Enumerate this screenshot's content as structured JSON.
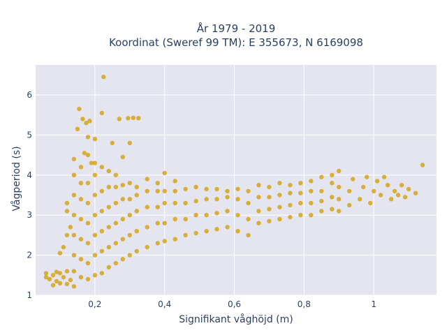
{
  "chart_data": {
    "type": "scatter",
    "title": [
      "År 1979 - 2019",
      "Koordinat (Sweref 99 TM): E 355673, N 6169098"
    ],
    "xlabel": "Signifikant våghöjd (m)",
    "ylabel": "Vågperiod (s)",
    "xlim": [
      0.03,
      1.18
    ],
    "ylim": [
      1.0,
      6.75
    ],
    "x_ticks": [
      0.2,
      0.4,
      0.6,
      0.8,
      1.0
    ],
    "x_tick_labels": [
      "0,2",
      "0,4",
      "0,6",
      "0,8",
      "1"
    ],
    "y_ticks": [
      1,
      2,
      3,
      4,
      5,
      6
    ],
    "y_tick_labels": [
      "1",
      "2",
      "3",
      "4",
      "5",
      "6"
    ],
    "grid": true,
    "plot_background": "#e5e5f0",
    "marker_color": "#d4a419",
    "series": [
      {
        "points": [
          [
            0.06,
            1.45
          ],
          [
            0.07,
            1.4
          ],
          [
            0.08,
            1.5
          ],
          [
            0.09,
            1.35
          ],
          [
            0.1,
            1.55
          ],
          [
            0.11,
            1.45
          ],
          [
            0.12,
            1.6
          ],
          [
            0.13,
            1.38
          ],
          [
            0.08,
            1.25
          ],
          [
            0.1,
            1.3
          ],
          [
            0.12,
            1.28
          ],
          [
            0.14,
            1.22
          ],
          [
            0.06,
            1.55
          ],
          [
            0.09,
            1.58
          ],
          [
            0.1,
            2.05
          ],
          [
            0.11,
            2.2
          ],
          [
            0.12,
            2.5
          ],
          [
            0.12,
            3.1
          ],
          [
            0.12,
            3.3
          ],
          [
            0.13,
            2.7
          ],
          [
            0.14,
            1.6
          ],
          [
            0.14,
            2.0
          ],
          [
            0.14,
            2.5
          ],
          [
            0.14,
            3.0
          ],
          [
            0.14,
            3.5
          ],
          [
            0.14,
            4.0
          ],
          [
            0.14,
            4.4
          ],
          [
            0.16,
            1.45
          ],
          [
            0.16,
            1.9
          ],
          [
            0.16,
            2.4
          ],
          [
            0.16,
            2.9
          ],
          [
            0.16,
            3.4
          ],
          [
            0.16,
            3.8
          ],
          [
            0.16,
            4.2
          ],
          [
            0.18,
            1.4
          ],
          [
            0.18,
            1.8
          ],
          [
            0.18,
            2.3
          ],
          [
            0.18,
            2.8
          ],
          [
            0.18,
            3.3
          ],
          [
            0.18,
            3.8
          ],
          [
            0.18,
            4.5
          ],
          [
            0.2,
            1.5
          ],
          [
            0.2,
            2.0
          ],
          [
            0.2,
            2.5
          ],
          [
            0.2,
            3.0
          ],
          [
            0.2,
            3.5
          ],
          [
            0.2,
            4.0
          ],
          [
            0.2,
            4.3
          ],
          [
            0.22,
            1.55
          ],
          [
            0.22,
            2.1
          ],
          [
            0.22,
            2.6
          ],
          [
            0.22,
            3.1
          ],
          [
            0.22,
            3.6
          ],
          [
            0.22,
            4.2
          ],
          [
            0.24,
            1.7
          ],
          [
            0.24,
            2.2
          ],
          [
            0.24,
            2.7
          ],
          [
            0.24,
            3.2
          ],
          [
            0.24,
            3.7
          ],
          [
            0.24,
            4.1
          ],
          [
            0.26,
            1.8
          ],
          [
            0.26,
            2.3
          ],
          [
            0.26,
            2.8
          ],
          [
            0.26,
            3.3
          ],
          [
            0.26,
            3.7
          ],
          [
            0.26,
            4.0
          ],
          [
            0.28,
            1.9
          ],
          [
            0.28,
            2.4
          ],
          [
            0.28,
            2.9
          ],
          [
            0.28,
            3.4
          ],
          [
            0.28,
            3.75
          ],
          [
            0.3,
            2.0
          ],
          [
            0.3,
            2.5
          ],
          [
            0.3,
            3.0
          ],
          [
            0.3,
            3.4
          ],
          [
            0.3,
            3.8
          ],
          [
            0.32,
            2.1
          ],
          [
            0.32,
            2.6
          ],
          [
            0.32,
            3.1
          ],
          [
            0.32,
            3.5
          ],
          [
            0.32,
            3.7
          ],
          [
            0.35,
            2.2
          ],
          [
            0.35,
            2.7
          ],
          [
            0.35,
            3.2
          ],
          [
            0.35,
            3.6
          ],
          [
            0.35,
            3.9
          ],
          [
            0.38,
            2.3
          ],
          [
            0.38,
            2.8
          ],
          [
            0.38,
            3.2
          ],
          [
            0.38,
            3.6
          ],
          [
            0.38,
            3.8
          ],
          [
            0.4,
            2.35
          ],
          [
            0.4,
            2.8
          ],
          [
            0.4,
            3.3
          ],
          [
            0.4,
            3.6
          ],
          [
            0.4,
            4.05
          ],
          [
            0.43,
            2.4
          ],
          [
            0.43,
            2.9
          ],
          [
            0.43,
            3.3
          ],
          [
            0.43,
            3.6
          ],
          [
            0.43,
            3.85
          ],
          [
            0.46,
            2.5
          ],
          [
            0.46,
            2.9
          ],
          [
            0.46,
            3.3
          ],
          [
            0.46,
            3.65
          ],
          [
            0.49,
            2.55
          ],
          [
            0.49,
            3.0
          ],
          [
            0.49,
            3.35
          ],
          [
            0.49,
            3.7
          ],
          [
            0.52,
            2.6
          ],
          [
            0.52,
            3.0
          ],
          [
            0.52,
            3.4
          ],
          [
            0.52,
            3.65
          ],
          [
            0.55,
            2.65
          ],
          [
            0.55,
            3.05
          ],
          [
            0.55,
            3.4
          ],
          [
            0.55,
            3.65
          ],
          [
            0.58,
            2.7
          ],
          [
            0.58,
            3.1
          ],
          [
            0.58,
            3.45
          ],
          [
            0.58,
            3.6
          ],
          [
            0.61,
            2.6
          ],
          [
            0.61,
            3.0
          ],
          [
            0.61,
            3.4
          ],
          [
            0.61,
            3.65
          ],
          [
            0.64,
            2.5
          ],
          [
            0.64,
            2.9
          ],
          [
            0.64,
            3.3
          ],
          [
            0.64,
            3.6
          ],
          [
            0.67,
            2.8
          ],
          [
            0.67,
            3.1
          ],
          [
            0.67,
            3.45
          ],
          [
            0.67,
            3.75
          ],
          [
            0.7,
            2.85
          ],
          [
            0.7,
            3.15
          ],
          [
            0.7,
            3.45
          ],
          [
            0.7,
            3.7
          ],
          [
            0.73,
            2.9
          ],
          [
            0.73,
            3.2
          ],
          [
            0.73,
            3.5
          ],
          [
            0.73,
            3.8
          ],
          [
            0.76,
            2.95
          ],
          [
            0.76,
            3.25
          ],
          [
            0.76,
            3.55
          ],
          [
            0.76,
            3.75
          ],
          [
            0.79,
            3.0
          ],
          [
            0.79,
            3.3
          ],
          [
            0.79,
            3.55
          ],
          [
            0.79,
            3.8
          ],
          [
            0.82,
            3.0
          ],
          [
            0.82,
            3.3
          ],
          [
            0.82,
            3.6
          ],
          [
            0.82,
            3.85
          ],
          [
            0.85,
            3.1
          ],
          [
            0.85,
            3.35
          ],
          [
            0.85,
            3.6
          ],
          [
            0.85,
            3.95
          ],
          [
            0.88,
            3.15
          ],
          [
            0.88,
            3.45
          ],
          [
            0.88,
            3.8
          ],
          [
            0.88,
            4.0
          ],
          [
            0.9,
            3.1
          ],
          [
            0.9,
            3.4
          ],
          [
            0.9,
            3.7
          ],
          [
            0.9,
            4.1
          ],
          [
            0.93,
            3.25
          ],
          [
            0.93,
            3.6
          ],
          [
            0.94,
            3.9
          ],
          [
            0.96,
            3.4
          ],
          [
            0.97,
            3.7
          ],
          [
            0.98,
            3.95
          ],
          [
            0.99,
            3.3
          ],
          [
            1.0,
            3.6
          ],
          [
            1.01,
            3.85
          ],
          [
            1.02,
            3.5
          ],
          [
            1.03,
            3.95
          ],
          [
            1.04,
            3.75
          ],
          [
            1.05,
            3.4
          ],
          [
            1.06,
            3.6
          ],
          [
            1.07,
            3.5
          ],
          [
            1.08,
            3.75
          ],
          [
            1.09,
            3.45
          ],
          [
            1.1,
            3.65
          ],
          [
            1.12,
            3.55
          ],
          [
            1.14,
            4.25
          ],
          [
            0.155,
            5.65
          ],
          [
            0.165,
            5.4
          ],
          [
            0.175,
            5.3
          ],
          [
            0.185,
            5.35
          ],
          [
            0.22,
            5.55
          ],
          [
            0.18,
            4.95
          ],
          [
            0.15,
            5.15
          ],
          [
            0.27,
            5.4
          ],
          [
            0.295,
            5.42
          ],
          [
            0.31,
            5.43
          ],
          [
            0.325,
            5.42
          ],
          [
            0.3,
            4.8
          ],
          [
            0.225,
            6.45
          ],
          [
            0.2,
            4.9
          ],
          [
            0.25,
            4.8
          ],
          [
            0.28,
            4.45
          ],
          [
            0.17,
            4.55
          ],
          [
            0.19,
            4.3
          ]
        ]
      }
    ]
  }
}
